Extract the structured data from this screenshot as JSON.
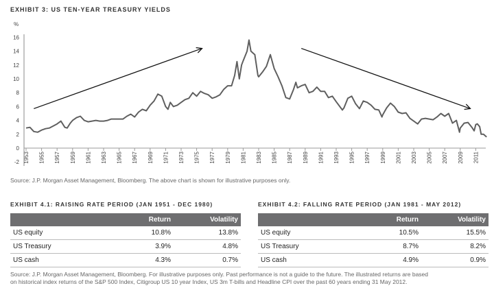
{
  "chart_data": {
    "type": "line",
    "title": "EXHIBIT 3: US TEN-YEAR TREASURY YIELDS",
    "ylabel": "%",
    "xlabel": "",
    "ylim": [
      -2,
      16
    ],
    "yticks": [
      "16",
      "14",
      "12",
      "10",
      "8",
      "6",
      "4",
      "2",
      "0",
      "-2"
    ],
    "xlim": [
      1953,
      2012.5
    ],
    "xticks": [
      "1953",
      "1955",
      "1957",
      "1959",
      "1961",
      "1963",
      "1965",
      "1967",
      "1969",
      "1971",
      "1973",
      "1975",
      "1977",
      "1979",
      "1981",
      "1983",
      "1985",
      "1987",
      "1989",
      "1991",
      "1993",
      "1995",
      "1997",
      "1999",
      "2001",
      "2003",
      "2005",
      "2007",
      "2009",
      "2011"
    ],
    "grid": false,
    "color": "#5f5f5f",
    "series": [
      {
        "name": "US 10Y Treasury Yield",
        "x": [
          1953,
          1953.5,
          1954,
          1954.5,
          1955,
          1955.5,
          1956,
          1956.5,
          1957,
          1957.5,
          1958,
          1958.3,
          1958.7,
          1959,
          1959.5,
          1960,
          1960.5,
          1961,
          1961.5,
          1962,
          1962.5,
          1963,
          1963.5,
          1964,
          1965,
          1965.5,
          1966,
          1966.5,
          1967,
          1967.5,
          1968,
          1968.5,
          1969,
          1969.5,
          1970,
          1970.5,
          1971,
          1971.3,
          1971.6,
          1972,
          1972.5,
          1973,
          1973.5,
          1974,
          1974.5,
          1975,
          1975.5,
          1976,
          1976.5,
          1977,
          1977.5,
          1978,
          1978.5,
          1979,
          1979.5,
          1979.9,
          1980.2,
          1980.5,
          1980.8,
          1981,
          1981.5,
          1981.75,
          1982,
          1982.5,
          1982.9,
          1983,
          1983.5,
          1984,
          1984.5,
          1985,
          1985.5,
          1986,
          1986.5,
          1987,
          1987.5,
          1987.8,
          1988,
          1988.5,
          1989,
          1989.5,
          1990,
          1990.5,
          1991,
          1991.5,
          1992,
          1992.5,
          1993,
          1993.8,
          1994,
          1994.5,
          1995,
          1995.5,
          1996,
          1996.5,
          1997,
          1997.5,
          1998,
          1998.5,
          1998.9,
          1999,
          1999.5,
          2000,
          2000.5,
          2001,
          2001.5,
          2002,
          2002.5,
          2003,
          2003.5,
          2004,
          2004.5,
          2005,
          2005.5,
          2006,
          2006.5,
          2007,
          2007.5,
          2008,
          2008.5,
          2008.9,
          2009,
          2009.5,
          2010,
          2010.5,
          2010.8,
          2011,
          2011.2,
          2011.5,
          2011.7,
          2012,
          2012.4
        ],
        "values": [
          2.9,
          3.0,
          2.4,
          2.3,
          2.6,
          2.8,
          2.9,
          3.2,
          3.5,
          3.9,
          3.0,
          2.9,
          3.6,
          4.0,
          4.4,
          4.6,
          4.0,
          3.8,
          3.9,
          4.0,
          3.9,
          3.9,
          4.0,
          4.2,
          4.2,
          4.2,
          4.6,
          4.9,
          4.5,
          5.2,
          5.6,
          5.4,
          6.2,
          6.8,
          7.8,
          7.5,
          6.0,
          5.6,
          6.6,
          6.0,
          6.2,
          6.6,
          7.0,
          7.2,
          8.0,
          7.5,
          8.2,
          7.9,
          7.7,
          7.2,
          7.4,
          7.7,
          8.5,
          9.0,
          9.0,
          10.5,
          12.5,
          10.0,
          12.0,
          12.6,
          14.0,
          15.6,
          14.0,
          13.5,
          10.5,
          10.3,
          11.0,
          11.8,
          13.5,
          11.5,
          10.3,
          9.0,
          7.3,
          7.1,
          8.5,
          9.5,
          8.7,
          9.0,
          9.2,
          8.0,
          8.2,
          8.8,
          8.2,
          8.2,
          7.3,
          7.5,
          6.7,
          5.5,
          5.8,
          7.2,
          7.5,
          6.4,
          5.7,
          6.8,
          6.6,
          6.2,
          5.6,
          5.5,
          4.5,
          4.8,
          5.8,
          6.5,
          6.0,
          5.2,
          5.0,
          5.1,
          4.3,
          3.9,
          3.5,
          4.2,
          4.3,
          4.2,
          4.1,
          4.5,
          5.0,
          4.6,
          5.0,
          3.6,
          4.0,
          2.3,
          2.9,
          3.6,
          3.7,
          3.0,
          2.5,
          3.4,
          3.5,
          3.1,
          2.0,
          2.0,
          1.6
        ]
      }
    ],
    "annotations": [
      {
        "type": "arrow",
        "from": [
          1954,
          5.7
        ],
        "to": [
          1975.7,
          14.4
        ]
      },
      {
        "type": "arrow",
        "from": [
          1988.5,
          14.4
        ],
        "to": [
          2010.3,
          5.7
        ]
      }
    ]
  },
  "chart_source": "Source: J.P. Morgan Asset Management, Bloomberg. The above chart is shown for illustrative purposes only.",
  "tables": [
    {
      "title": "EXHIBIT 4.1: RAISING RATE PERIOD (JAN 1951 - DEC 1980)",
      "headers": [
        "",
        "Return",
        "Volatility"
      ],
      "rows": [
        {
          "label": "US equity",
          "return": "10.8%",
          "volatility": "13.8%"
        },
        {
          "label": "US Treasury",
          "return": "3.9%",
          "volatility": "4.8%"
        },
        {
          "label": "US cash",
          "return": "4.3%",
          "volatility": "0.7%"
        }
      ]
    },
    {
      "title": "EXHIBIT 4.2: FALLING RATE PERIOD (JAN 1981 - MAY 2012)",
      "headers": [
        "",
        "Return",
        "Volatility"
      ],
      "rows": [
        {
          "label": "US equity",
          "return": "10.5%",
          "volatility": "15.5%"
        },
        {
          "label": "US Treasury",
          "return": "8.7%",
          "volatility": "8.2%"
        },
        {
          "label": "US cash",
          "return": "4.9%",
          "volatility": "0.9%"
        }
      ]
    }
  ],
  "footer_source": [
    "Source: J.P. Morgan Asset Management, Bloomberg. For illustrative purposes only. Past performance is not a guide to the future. The illustrated returns are based",
    "on historical index returns of the S&P 500 Index, Citigroup US 10 year Index, US 3m T-bills and Headline CPI over the past 60 years ending 31 May 2012."
  ]
}
